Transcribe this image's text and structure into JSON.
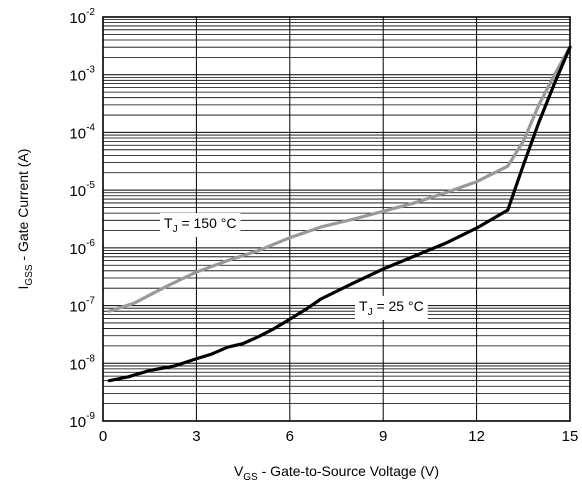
{
  "chart_data": {
    "type": "line",
    "title": "",
    "xlabel": {
      "main": "V",
      "sub": "GS",
      "rest": " - Gate-to-Source Voltage (V)"
    },
    "ylabel": {
      "main": "I",
      "sub": "GSS",
      "rest": " - Gate Current (A)"
    },
    "xlim": [
      0,
      15
    ],
    "ylim": [
      1e-09,
      0.01
    ],
    "yscale": "log",
    "grid": true,
    "x_ticks": [
      0,
      3,
      6,
      9,
      12,
      15
    ],
    "x_tick_labels": [
      "0",
      "3",
      "6",
      "9",
      "12",
      "15"
    ],
    "y_ticks": [
      1e-09,
      1e-08,
      1e-07,
      1e-06,
      1e-05,
      0.0001,
      0.001,
      0.01
    ],
    "y_tick_labels": [
      {
        "base": "10",
        "exp": "-9"
      },
      {
        "base": "10",
        "exp": "-8"
      },
      {
        "base": "10",
        "exp": "-7"
      },
      {
        "base": "10",
        "exp": "-6"
      },
      {
        "base": "10",
        "exp": "-5"
      },
      {
        "base": "10",
        "exp": "-4"
      },
      {
        "base": "10",
        "exp": "-3"
      },
      {
        "base": "10",
        "exp": "-2"
      }
    ],
    "series": [
      {
        "name": "T_J = 150 °C",
        "label": {
          "main": "T",
          "sub": "J",
          "rest": " = 150 °C"
        },
        "color": "#999999",
        "x": [
          0.2,
          1.0,
          2.0,
          3.0,
          4.0,
          5.0,
          6.0,
          7.0,
          8.0,
          9.0,
          10.0,
          11.0,
          12.0,
          13.0,
          13.5,
          14.0,
          14.5,
          15.0
        ],
        "y": [
          8e-08,
          1.1e-07,
          2.1e-07,
          3.8e-07,
          6e-07,
          9e-07,
          1.5e-06,
          2.3e-06,
          3.1e-06,
          4.3e-06,
          6e-06,
          9e-06,
          1.4e-05,
          2.6e-05,
          7e-05,
          0.0003,
          0.001,
          0.003
        ]
      },
      {
        "name": "T_J = 25 °C",
        "label": {
          "main": "T",
          "sub": "J",
          "rest": " = 25 °C"
        },
        "color": "#000000",
        "x": [
          0.2,
          0.8,
          1.5,
          2.3,
          3.0,
          3.5,
          4.0,
          4.5,
          5.0,
          5.5,
          6.0,
          6.5,
          7.0,
          8.0,
          9.0,
          10.0,
          11.0,
          12.0,
          13.0,
          13.5,
          14.0,
          14.5,
          15.0
        ],
        "y": [
          5e-09,
          5.8e-09,
          7.5e-09,
          9e-09,
          1.2e-08,
          1.45e-08,
          1.9e-08,
          2.2e-08,
          2.9e-08,
          4e-08,
          5.8e-08,
          8.5e-08,
          1.3e-07,
          2.4e-07,
          4.3e-07,
          7.2e-07,
          1.2e-06,
          2.2e-06,
          4.5e-06,
          2.7e-05,
          0.00015,
          0.0007,
          0.003
        ]
      }
    ]
  }
}
